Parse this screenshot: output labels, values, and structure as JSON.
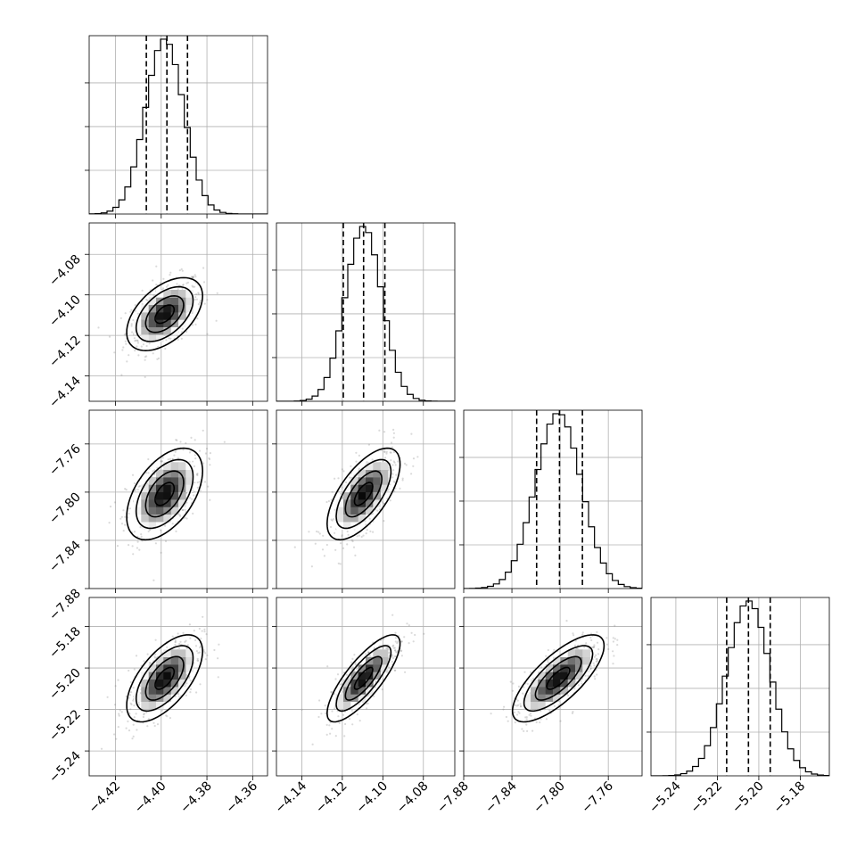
{
  "chart_data": {
    "type": "corner",
    "parameters": [
      {
        "mean": -4.3985,
        "std": 0.0083,
        "range": [
          -4.4315,
          -4.3535
        ],
        "ticks": [
          -4.42,
          -4.4,
          -4.38,
          -4.36
        ],
        "tick_labels": [
          "−4.42",
          "−4.40",
          "−4.38",
          "−4.36"
        ],
        "quantiles": [
          -4.4065,
          -4.3975,
          -4.3885
        ]
      },
      {
        "mean": -4.1095,
        "std": 0.009,
        "range": [
          -4.1525,
          -4.0645
        ],
        "ticks": [
          -4.14,
          -4.12,
          -4.1,
          -4.08
        ],
        "tick_labels": [
          "−4.14",
          "−4.12",
          "−4.10",
          "−4.08"
        ],
        "quantiles": [
          -4.1195,
          -4.1095,
          -4.099
        ]
      },
      {
        "mean": -7.8015,
        "std": 0.019,
        "range": [
          -7.88,
          -7.732
        ],
        "ticks": [
          -7.88,
          -7.84,
          -7.8,
          -7.76
        ],
        "tick_labels": [
          "−7.88",
          "−7.84",
          "−7.80",
          "−7.76"
        ],
        "quantiles": [
          -7.8195,
          -7.8005,
          -7.7815
        ]
      },
      {
        "mean": -5.205,
        "std": 0.0105,
        "range": [
          -5.252,
          -5.166
        ],
        "ticks": [
          -5.24,
          -5.22,
          -5.2,
          -5.18
        ],
        "tick_labels": [
          "−5.24",
          "−5.22",
          "−5.20",
          "−5.18"
        ],
        "quantiles": [
          -5.2155,
          -5.205,
          -5.1945
        ]
      }
    ],
    "correlation": [
      [
        1.0,
        0.5,
        0.5,
        0.62
      ],
      [
        0.5,
        1.0,
        0.65,
        0.8
      ],
      [
        0.5,
        0.65,
        1.0,
        0.75
      ],
      [
        0.62,
        0.8,
        0.75,
        1.0
      ]
    ],
    "histogram_bins": 30,
    "histogram_value_ticks": [
      0.25,
      0.5,
      0.75
    ],
    "contour_levels_sigma": [
      0.5,
      1.0,
      1.5,
      2.0
    ],
    "grid": true,
    "scatter_points": 450,
    "colors": {
      "hist": "#000000",
      "scatter": "#7a7a7a",
      "density": "#000000",
      "grid": "#b0b0b0"
    }
  }
}
